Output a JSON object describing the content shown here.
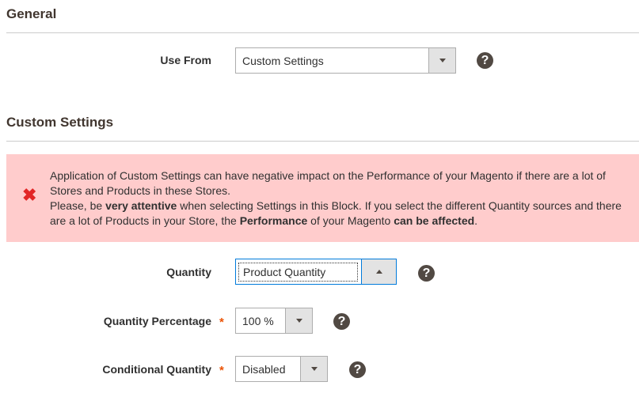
{
  "general": {
    "heading": "General",
    "use_from": {
      "label": "Use From",
      "value": "Custom Settings"
    }
  },
  "custom": {
    "heading": "Custom Settings",
    "alert": {
      "icon": "error-x-icon",
      "line1": "Application of Custom Settings can have negative impact on the Performance of your Magento if there are a lot of Stores and Products in these Stores.",
      "p2_a": "Please, be ",
      "p2_b": "very attentive",
      "p2_c": " when selecting Settings in this Block. If you select the different Quantity sources and there are a lot of Products in your Store, the ",
      "p2_d": "Performance",
      "p2_e": " of your Magento ",
      "p2_f": "can be affected",
      "p2_g": "."
    },
    "quantity": {
      "label": "Quantity",
      "value": "Product Quantity"
    },
    "quantity_percentage": {
      "label": "Quantity Percentage",
      "required": "*",
      "value": "100 %"
    },
    "conditional_quantity": {
      "label": "Conditional Quantity",
      "required": "*",
      "value": "Disabled"
    }
  },
  "help_icon": "?",
  "colors": {
    "alert_bg": "#ffcccc",
    "required": "#eb5202",
    "focus": "#007bdb",
    "error": "#e22626"
  }
}
